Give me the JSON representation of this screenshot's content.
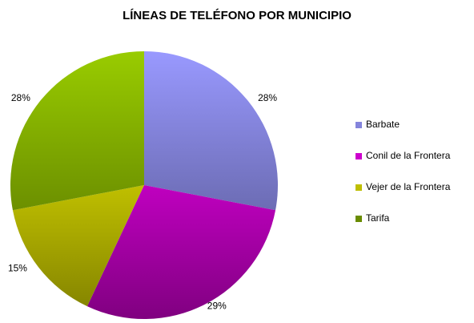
{
  "chart_data": {
    "type": "pie",
    "title": "LÍNEAS DE TELÉFONO POR MUNICIPIO",
    "categories": [
      "Barbate",
      "Conil de la Frontera",
      "Vejer de la Frontera",
      "Tarifa"
    ],
    "values": [
      28,
      29,
      15,
      28
    ],
    "value_labels": [
      "28%",
      "29%",
      "15%",
      "28%"
    ],
    "colors": [
      "#9999ff",
      "#ff00ff",
      "#ffff00",
      "#99cc00"
    ],
    "legend": "right"
  }
}
